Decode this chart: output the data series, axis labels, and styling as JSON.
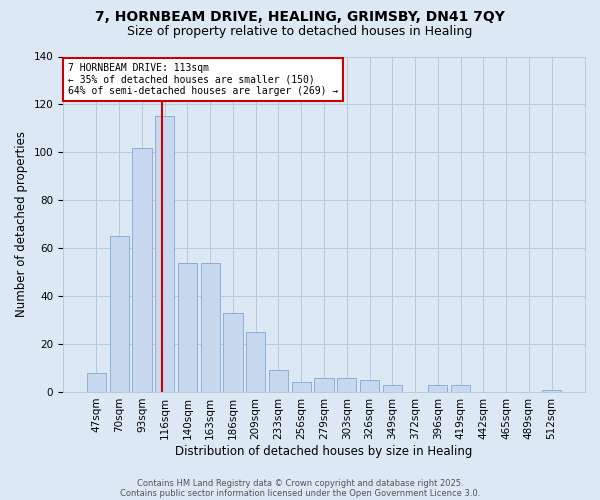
{
  "title1": "7, HORNBEAM DRIVE, HEALING, GRIMSBY, DN41 7QY",
  "title2": "Size of property relative to detached houses in Healing",
  "xlabel": "Distribution of detached houses by size in Healing",
  "ylabel": "Number of detached properties",
  "bar_values": [
    8,
    65,
    102,
    115,
    54,
    54,
    33,
    25,
    9,
    4,
    6,
    6,
    5,
    3,
    0,
    3,
    3,
    0,
    0,
    0,
    1
  ],
  "bar_labels": [
    "47sqm",
    "70sqm",
    "93sqm",
    "116sqm",
    "140sqm",
    "163sqm",
    "186sqm",
    "209sqm",
    "233sqm",
    "256sqm",
    "279sqm",
    "303sqm",
    "326sqm",
    "349sqm",
    "372sqm",
    "396sqm",
    "419sqm",
    "442sqm",
    "465sqm",
    "489sqm",
    "512sqm"
  ],
  "bar_color": "#c8d8ee",
  "bar_edge_color": "#8ab0d8",
  "grid_color": "#b8c8dc",
  "bg_color": "#dce8f4",
  "vline_color": "#cc0000",
  "annotation_line1": "7 HORNBEAM DRIVE: 113sqm",
  "annotation_line2": "← 35% of detached houses are smaller (150)",
  "annotation_line3": "64% of semi-detached houses are larger (269) →",
  "annotation_box_color": "#ffffff",
  "annotation_box_edge": "#cc0000",
  "ylim": [
    0,
    140
  ],
  "yticks": [
    0,
    20,
    40,
    60,
    80,
    100,
    120,
    140
  ],
  "footer_line1": "Contains HM Land Registry data © Crown copyright and database right 2025.",
  "footer_line2": "Contains public sector information licensed under the Open Government Licence 3.0.",
  "title1_fontsize": 10,
  "title2_fontsize": 9,
  "xlabel_fontsize": 8.5,
  "ylabel_fontsize": 8.5,
  "tick_fontsize": 7.5,
  "annot_fontsize": 7,
  "footer_fontsize": 6
}
